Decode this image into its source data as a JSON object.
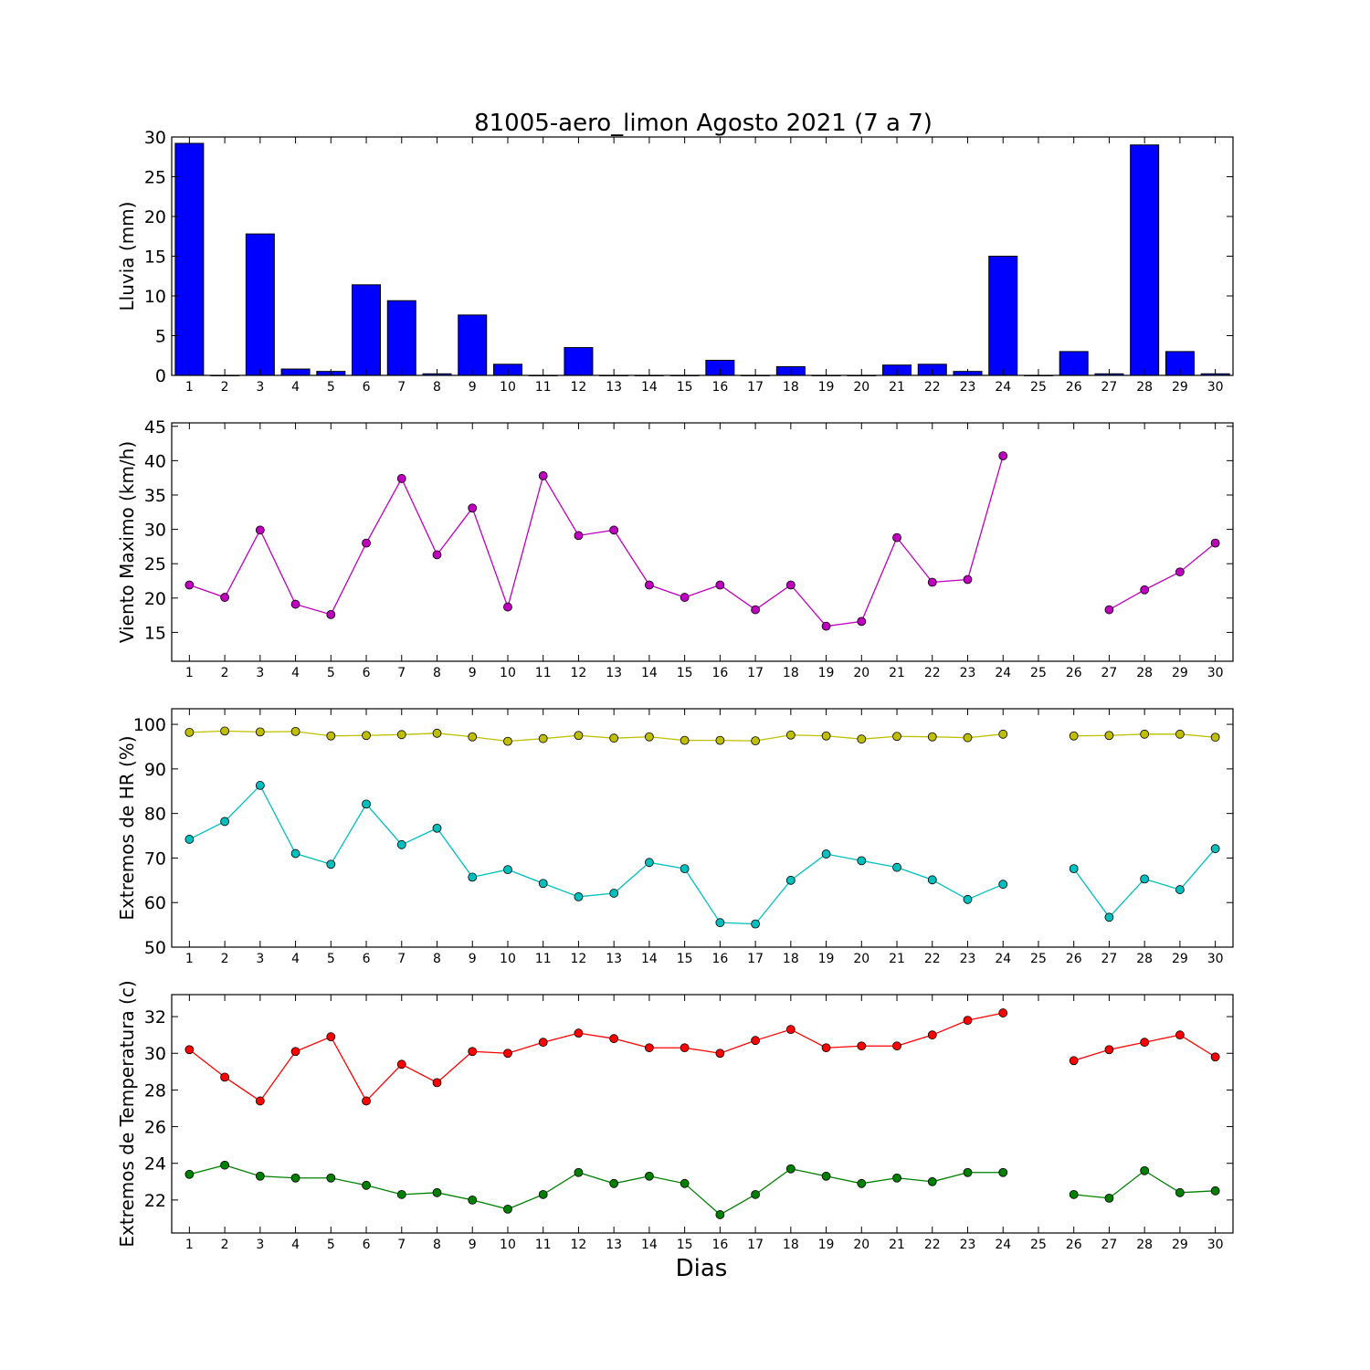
{
  "chart_data": {
    "title": "81005-aero_limon Agosto 2021  (7 a 7)",
    "xlabel": "Dias",
    "days": [
      1,
      2,
      3,
      4,
      5,
      6,
      7,
      8,
      9,
      10,
      11,
      12,
      13,
      14,
      15,
      16,
      17,
      18,
      19,
      20,
      21,
      22,
      23,
      24,
      25,
      26,
      27,
      28,
      29,
      30
    ],
    "panels": [
      {
        "id": "lluvia",
        "type": "bar",
        "ylabel": "Lluvia (mm)",
        "ylim": [
          0,
          30
        ],
        "yticks": [
          0,
          5,
          10,
          15,
          20,
          25,
          30
        ],
        "series": [
          {
            "color": "#0000ff",
            "values": [
              29.2,
              0,
              17.8,
              0.8,
              0.5,
              11.4,
              9.4,
              0.2,
              7.6,
              1.4,
              0,
              3.5,
              0,
              0,
              0,
              1.9,
              0,
              1.1,
              0,
              0,
              1.3,
              1.4,
              0.5,
              15.0,
              0,
              3.0,
              0.2,
              29.0,
              3.0,
              0.2
            ]
          }
        ]
      },
      {
        "id": "viento",
        "type": "line",
        "ylabel": "Viento Maximo (km/h)",
        "ylim": [
          10.8,
          45.5
        ],
        "yticks": [
          15,
          20,
          25,
          30,
          35,
          40,
          45
        ],
        "series": [
          {
            "color": "#bf00bf",
            "values": [
              21.9,
              20.1,
              29.9,
              19.1,
              17.6,
              28.0,
              37.4,
              26.3,
              33.1,
              18.7,
              37.8,
              29.1,
              29.9,
              21.9,
              20.1,
              21.9,
              18.3,
              21.9,
              15.9,
              16.6,
              28.8,
              22.3,
              22.7,
              40.7,
              null,
              null,
              18.3,
              21.2,
              23.8,
              28.0
            ]
          }
        ]
      },
      {
        "id": "hr",
        "type": "line",
        "ylabel": "Extremos de HR (%)",
        "ylim": [
          50,
          103.5
        ],
        "yticks": [
          50,
          60,
          70,
          80,
          90,
          100
        ],
        "series": [
          {
            "color": "#bfbf00",
            "values": [
              98.2,
              98.5,
              98.3,
              98.4,
              97.4,
              97.5,
              97.7,
              98.0,
              97.2,
              96.2,
              96.8,
              97.5,
              96.9,
              97.2,
              96.4,
              96.4,
              96.3,
              97.6,
              97.4,
              96.7,
              97.3,
              97.2,
              97.0,
              97.8,
              null,
              97.4,
              97.5,
              97.8,
              97.8,
              97.1
            ]
          },
          {
            "color": "#00bfbf",
            "values": [
              74.2,
              78.2,
              86.3,
              71.0,
              68.6,
              82.1,
              73.0,
              76.7,
              65.7,
              67.4,
              64.3,
              61.3,
              62.1,
              69.0,
              67.6,
              55.5,
              55.2,
              65.0,
              70.9,
              69.4,
              67.9,
              65.1,
              60.7,
              64.1,
              null,
              67.6,
              56.7,
              65.3,
              62.9,
              72.1
            ]
          }
        ]
      },
      {
        "id": "temp",
        "type": "line",
        "ylabel": "Extremos de Temperatura (c)",
        "ylim": [
          20.2,
          33.2
        ],
        "yticks": [
          22,
          24,
          26,
          28,
          30,
          32
        ],
        "series": [
          {
            "color": "#ff0000",
            "values": [
              30.2,
              28.7,
              27.4,
              30.1,
              30.9,
              27.4,
              29.4,
              28.4,
              30.1,
              30.0,
              30.6,
              31.1,
              30.8,
              30.3,
              30.3,
              30.0,
              30.7,
              31.3,
              30.3,
              30.4,
              30.4,
              31.0,
              31.8,
              32.2,
              null,
              29.6,
              30.2,
              30.6,
              31.0,
              29.8
            ]
          },
          {
            "color": "#008000",
            "values": [
              23.4,
              23.9,
              23.3,
              23.2,
              23.2,
              22.8,
              22.3,
              22.4,
              22.0,
              21.5,
              22.3,
              23.5,
              22.9,
              23.3,
              22.9,
              21.2,
              22.3,
              23.7,
              23.3,
              22.9,
              23.2,
              23.0,
              23.5,
              23.5,
              null,
              22.3,
              22.1,
              23.6,
              22.4,
              22.5
            ]
          }
        ]
      }
    ]
  }
}
